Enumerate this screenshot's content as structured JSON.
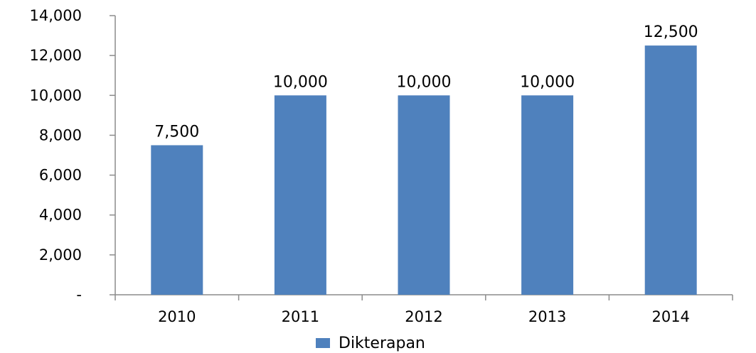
{
  "chart_data": {
    "type": "bar",
    "categories": [
      "2010",
      "2011",
      "2012",
      "2013",
      "2014"
    ],
    "series": [
      {
        "name": "Dikterapan",
        "values": [
          7500,
          10000,
          10000,
          10000,
          12500
        ],
        "color": "#4f81bd"
      }
    ],
    "data_labels": [
      "7,500",
      "10,000",
      "10,000",
      "10,000",
      "12,500"
    ],
    "ylim": [
      0,
      14000
    ],
    "yticks": [
      0,
      2000,
      4000,
      6000,
      8000,
      10000,
      12000,
      14000
    ],
    "ytick_labels": [
      "-",
      "2,000",
      "4,000",
      "6,000",
      "8,000",
      "10,000",
      "12,000",
      "14,000"
    ],
    "title": "",
    "xlabel": "",
    "ylabel": "",
    "grid": false,
    "legend_position": "bottom"
  }
}
